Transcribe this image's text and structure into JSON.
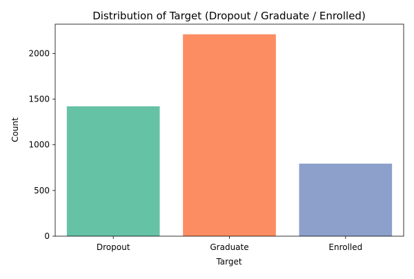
{
  "chart_data": {
    "type": "bar",
    "title": "Distribution of Target (Dropout / Graduate / Enrolled)",
    "xlabel": "Target",
    "ylabel": "Count",
    "categories": [
      "Dropout",
      "Graduate",
      "Enrolled"
    ],
    "values": [
      1421,
      2209,
      794
    ],
    "colors": [
      "#66c2a5",
      "#fc8d62",
      "#8da0cb"
    ],
    "ylim": [
      0,
      2320
    ],
    "yticks": [
      0,
      500,
      1000,
      1500,
      2000
    ],
    "grid": false,
    "legend": "none"
  }
}
